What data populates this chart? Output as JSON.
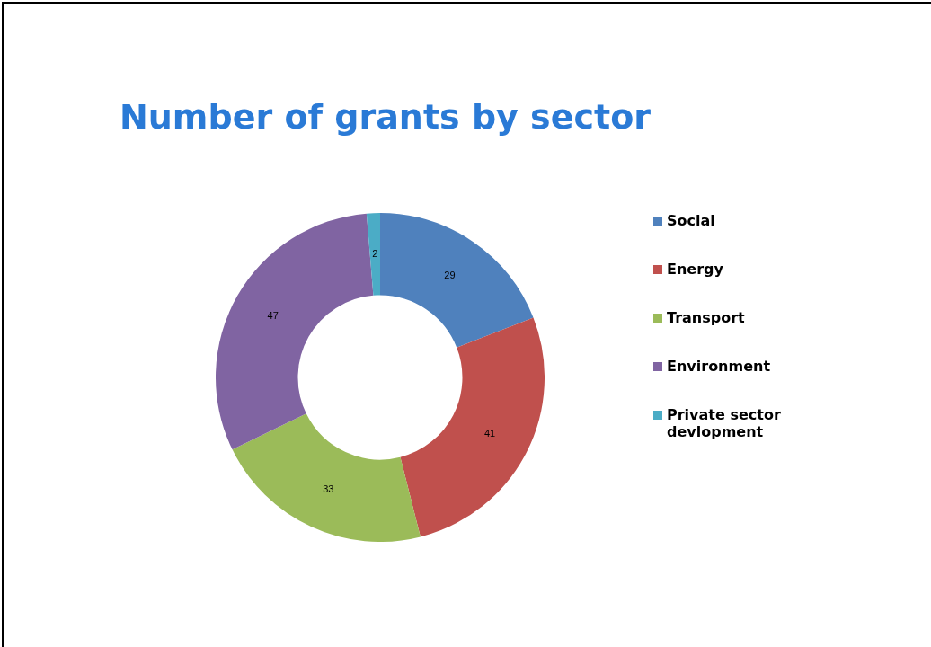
{
  "chart_data": {
    "type": "donut",
    "title": "Number of grants by sector",
    "categories": [
      "Social",
      "Energy",
      "Transport",
      "Environment",
      "Private sector devlopment"
    ],
    "values": [
      29,
      41,
      33,
      47,
      2
    ],
    "colors": [
      "#4f81bd",
      "#c0504d",
      "#9bbb59",
      "#8064a2",
      "#4bacc6"
    ],
    "data_labels": true,
    "legend": "right"
  }
}
